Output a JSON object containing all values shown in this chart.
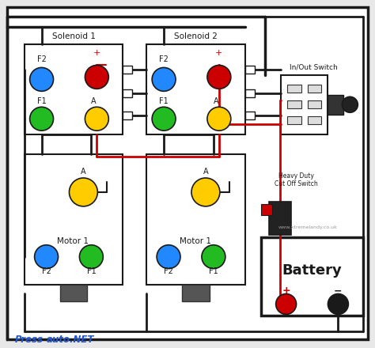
{
  "bg_color": "#e8e8e8",
  "outer_bg": "#ffffff",
  "wire_black": "#1a1a1a",
  "wire_red": "#cc0000",
  "solenoid1_label": "Solenoid 1",
  "solenoid2_label": "Solenoid 2",
  "motor1a_label": "Motor 1",
  "motor1b_label": "Motor 1",
  "battery_label": "Battery",
  "switch_label": "In/Out Switch",
  "cutoff_label": "Heavy Duty\nCut Off Switch",
  "watermark": "www.xtremelandy.co.uk",
  "footer_blue": "#2255cc",
  "blue": "#2288ff",
  "green": "#22bb22",
  "red": "#cc0000",
  "yellow": "#ffcc00",
  "black": "#1a1a1a",
  "white": "#ffffff",
  "tab_gray": "#999999"
}
